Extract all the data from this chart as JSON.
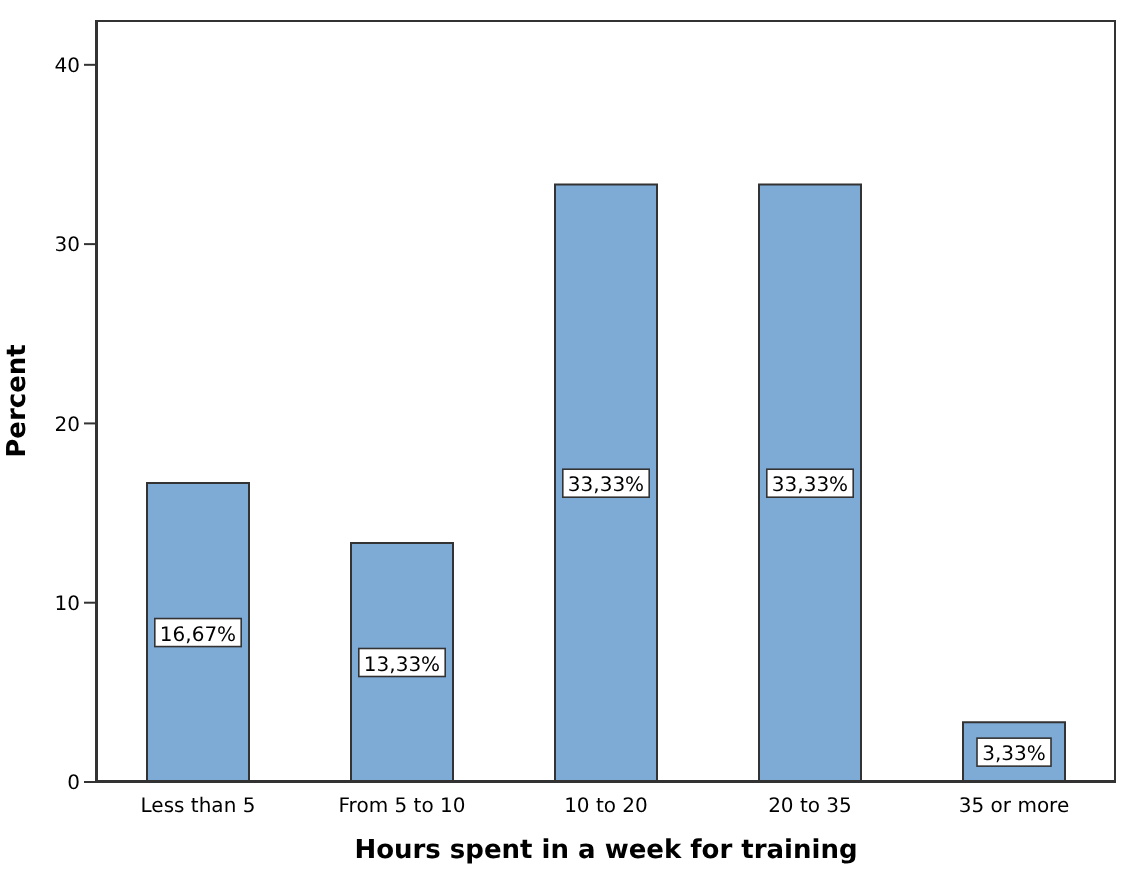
{
  "chart_data": {
    "type": "bar",
    "xlabel": "Hours spent in a week for training",
    "ylabel": "Percent",
    "categories": [
      "Less than 5",
      "From 5 to 10",
      "10 to 20",
      "20 to 35",
      "35 or more"
    ],
    "values": [
      16.67,
      13.33,
      33.33,
      33.33,
      3.33
    ],
    "value_labels": [
      "16,67%",
      "13,33%",
      "33,33%",
      "33,33%",
      "3,33%"
    ],
    "color": "#7eaad6",
    "ylim": [
      0,
      42.5
    ],
    "yticks": [
      0,
      10,
      20,
      30,
      40
    ],
    "grid": false
  }
}
